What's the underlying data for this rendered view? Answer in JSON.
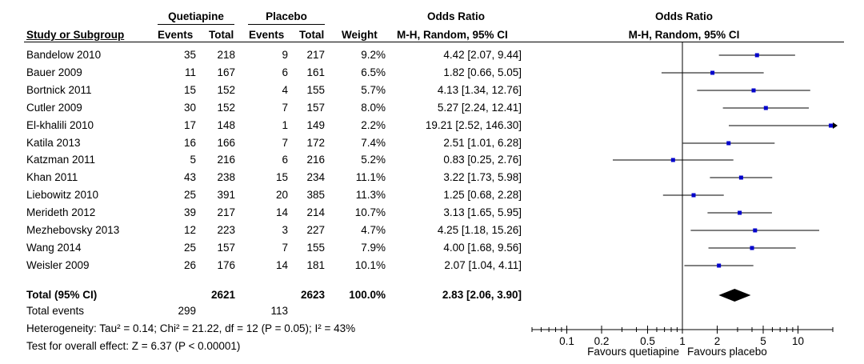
{
  "header": {
    "group1": "Quetiapine",
    "group2": "Placebo",
    "effect": "Odds Ratio",
    "plot_title": "Odds Ratio",
    "col_study": "Study or Subgroup",
    "col_events1": "Events",
    "col_total1": "Total",
    "col_events2": "Events",
    "col_total2": "Total",
    "col_weight": "Weight",
    "col_method": "M-H, Random, 95% CI",
    "plot_method": "M-H, Random, 95% CI"
  },
  "studies": [
    {
      "name": "Bandelow 2010",
      "e1": "35",
      "n1": "218",
      "e2": "9",
      "n2": "217",
      "weight": "9.2%",
      "ci_text": "4.42 [2.07, 9.44]",
      "or": 4.42,
      "lo": 2.07,
      "hi": 9.44
    },
    {
      "name": "Bauer 2009",
      "e1": "11",
      "n1": "167",
      "e2": "6",
      "n2": "161",
      "weight": "6.5%",
      "ci_text": "1.82 [0.66, 5.05]",
      "or": 1.82,
      "lo": 0.66,
      "hi": 5.05
    },
    {
      "name": "Bortnick 2011",
      "e1": "15",
      "n1": "152",
      "e2": "4",
      "n2": "155",
      "weight": "5.7%",
      "ci_text": "4.13 [1.34, 12.76]",
      "or": 4.13,
      "lo": 1.34,
      "hi": 12.76
    },
    {
      "name": "Cutler 2009",
      "e1": "30",
      "n1": "152",
      "e2": "7",
      "n2": "157",
      "weight": "8.0%",
      "ci_text": "5.27 [2.24, 12.41]",
      "or": 5.27,
      "lo": 2.24,
      "hi": 12.41
    },
    {
      "name": "El-khalili 2010",
      "e1": "17",
      "n1": "148",
      "e2": "1",
      "n2": "149",
      "weight": "2.2%",
      "ci_text": "19.21 [2.52, 146.30]",
      "or": 19.21,
      "lo": 2.52,
      "hi": 146.3
    },
    {
      "name": "Katila 2013",
      "e1": "16",
      "n1": "166",
      "e2": "7",
      "n2": "172",
      "weight": "7.4%",
      "ci_text": "2.51 [1.01, 6.28]",
      "or": 2.51,
      "lo": 1.01,
      "hi": 6.28
    },
    {
      "name": "Katzman 2011",
      "e1": "5",
      "n1": "216",
      "e2": "6",
      "n2": "216",
      "weight": "5.2%",
      "ci_text": "0.83 [0.25, 2.76]",
      "or": 0.83,
      "lo": 0.25,
      "hi": 2.76
    },
    {
      "name": "Khan 2011",
      "e1": "43",
      "n1": "238",
      "e2": "15",
      "n2": "234",
      "weight": "11.1%",
      "ci_text": "3.22 [1.73, 5.98]",
      "or": 3.22,
      "lo": 1.73,
      "hi": 5.98
    },
    {
      "name": "Liebowitz 2010",
      "e1": "25",
      "n1": "391",
      "e2": "20",
      "n2": "385",
      "weight": "11.3%",
      "ci_text": "1.25 [0.68, 2.28]",
      "or": 1.25,
      "lo": 0.68,
      "hi": 2.28
    },
    {
      "name": "Merideth 2012",
      "e1": "39",
      "n1": "217",
      "e2": "14",
      "n2": "214",
      "weight": "10.7%",
      "ci_text": "3.13 [1.65, 5.95]",
      "or": 3.13,
      "lo": 1.65,
      "hi": 5.95
    },
    {
      "name": "Mezhebovsky 2013",
      "e1": "12",
      "n1": "223",
      "e2": "3",
      "n2": "227",
      "weight": "4.7%",
      "ci_text": "4.25 [1.18, 15.26]",
      "or": 4.25,
      "lo": 1.18,
      "hi": 15.26
    },
    {
      "name": "Wang 2014",
      "e1": "25",
      "n1": "157",
      "e2": "7",
      "n2": "155",
      "weight": "7.9%",
      "ci_text": "4.00 [1.68, 9.56]",
      "or": 4.0,
      "lo": 1.68,
      "hi": 9.56
    },
    {
      "name": "Weisler 2009",
      "e1": "26",
      "n1": "176",
      "e2": "14",
      "n2": "181",
      "weight": "10.1%",
      "ci_text": "2.07 [1.04, 4.11]",
      "or": 2.07,
      "lo": 1.04,
      "hi": 4.11
    }
  ],
  "total": {
    "label": "Total (95% CI)",
    "n1": "2621",
    "n2": "2623",
    "weight": "100.0%",
    "ci_text": "2.83 [2.06, 3.90]",
    "or": 2.83,
    "lo": 2.06,
    "hi": 3.9
  },
  "total_events": {
    "label": "Total events",
    "e1": "299",
    "e2": "113"
  },
  "heterogeneity": "Heterogeneity: Tau² = 0.14; Chi² = 21.22, df = 12 (P = 0.05); I² = 43%",
  "overall_effect": "Test for overall effect: Z = 6.37 (P < 0.00001)",
  "axis": {
    "scale": "log",
    "range": [
      0.05,
      20
    ],
    "ticks": [
      {
        "value": 0.1,
        "label": "0.1"
      },
      {
        "value": 0.2,
        "label": "0.2"
      },
      {
        "value": 0.5,
        "label": "0.5"
      },
      {
        "value": 1,
        "label": "1"
      },
      {
        "value": 2,
        "label": "2"
      },
      {
        "value": 5,
        "label": "5"
      },
      {
        "value": 10,
        "label": "10"
      }
    ],
    "favours_left": "Favours quetiapine",
    "favours_right": "Favours placebo"
  },
  "colors": {
    "point": "#0000cc",
    "line": "#000000",
    "diamond": "#000000"
  }
}
